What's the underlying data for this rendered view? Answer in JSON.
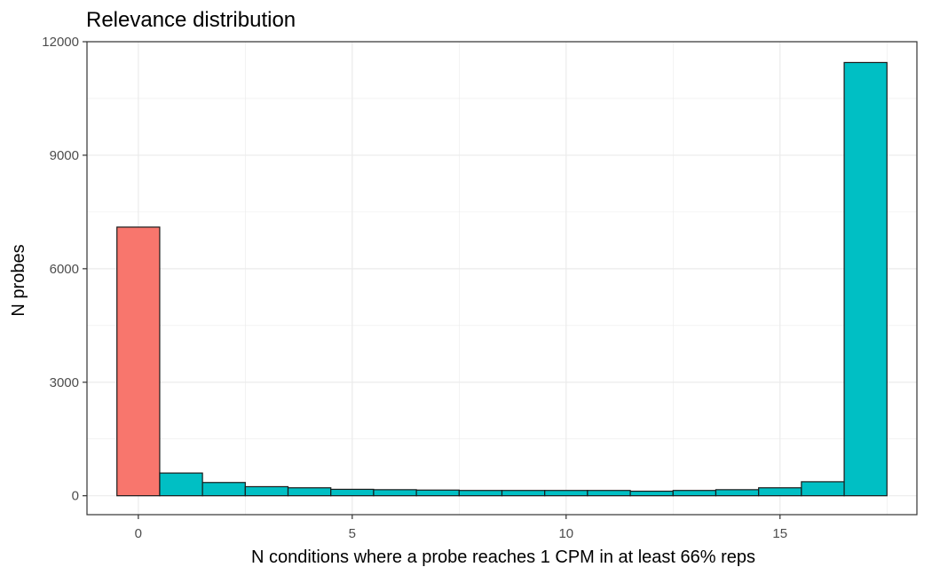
{
  "chart_data": {
    "type": "bar",
    "title": "Relevance distribution",
    "xlabel": "N conditions where a probe reaches 1 CPM in at least 66% reps",
    "ylabel": "N probes",
    "x": [
      0,
      1,
      2,
      3,
      4,
      5,
      6,
      7,
      8,
      9,
      10,
      11,
      12,
      13,
      14,
      15,
      16,
      17
    ],
    "values": [
      7100,
      600,
      350,
      240,
      210,
      170,
      160,
      150,
      140,
      140,
      140,
      140,
      120,
      140,
      160,
      210,
      370,
      11450
    ],
    "bar_colors": [
      "#F8766D",
      "#00BFC4",
      "#00BFC4",
      "#00BFC4",
      "#00BFC4",
      "#00BFC4",
      "#00BFC4",
      "#00BFC4",
      "#00BFC4",
      "#00BFC4",
      "#00BFC4",
      "#00BFC4",
      "#00BFC4",
      "#00BFC4",
      "#00BFC4",
      "#00BFC4",
      "#00BFC4",
      "#00BFC4"
    ],
    "xlim": [
      -1.2,
      18.2
    ],
    "ylim": [
      -500,
      12000
    ],
    "x_ticks": [
      0,
      5,
      10,
      15
    ],
    "y_ticks": [
      0,
      3000,
      6000,
      9000,
      12000
    ],
    "x_tick_labels": [
      "0",
      "5",
      "10",
      "15"
    ],
    "y_tick_labels": [
      "0",
      "3000",
      "6000",
      "9000",
      "12000"
    ],
    "grid": true,
    "legend": false,
    "colors": {
      "grid": "#ebebeb",
      "bar_outline": "#1a1a1a",
      "panel_border": "#333333"
    }
  }
}
